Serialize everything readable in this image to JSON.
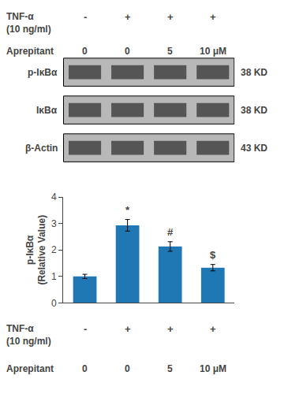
{
  "chart_data": {
    "type": "bar",
    "categories": [
      [
        "-",
        "0"
      ],
      [
        "+",
        "0"
      ],
      [
        "+",
        "5"
      ],
      [
        "+",
        "10 μM"
      ]
    ],
    "category_row_labels": [
      [
        "TNF-α",
        "(10 ng/ml)"
      ],
      [
        "Aprepitant"
      ]
    ],
    "values": [
      1.0,
      2.93,
      2.13,
      1.33
    ],
    "errors": [
      0.08,
      0.22,
      0.18,
      0.12
    ],
    "ylim": [
      0,
      4
    ],
    "yticks": [
      0,
      1,
      2,
      3,
      4
    ],
    "ylabel": [
      "p-IκBα",
      "(Relative Value)"
    ],
    "annotations": [
      null,
      "*",
      "#",
      "$"
    ],
    "grid": false,
    "blot": {
      "color": "#b8b8b8",
      "header_rows": [
        {
          "label": [
            "TNF-α",
            "(10 ng/ml)"
          ],
          "lanes": [
            "-",
            "+",
            "+",
            "+"
          ]
        },
        {
          "label": [
            "Aprepitant"
          ],
          "lanes": [
            "0",
            "0",
            "5",
            "10 μM"
          ]
        }
      ],
      "rows": [
        {
          "label": "p-IκBα",
          "kd": "38 KD"
        },
        {
          "label": "IκBα",
          "kd": "38 KD"
        },
        {
          "label": "β-Actin",
          "kd": "43 KD"
        }
      ]
    }
  }
}
